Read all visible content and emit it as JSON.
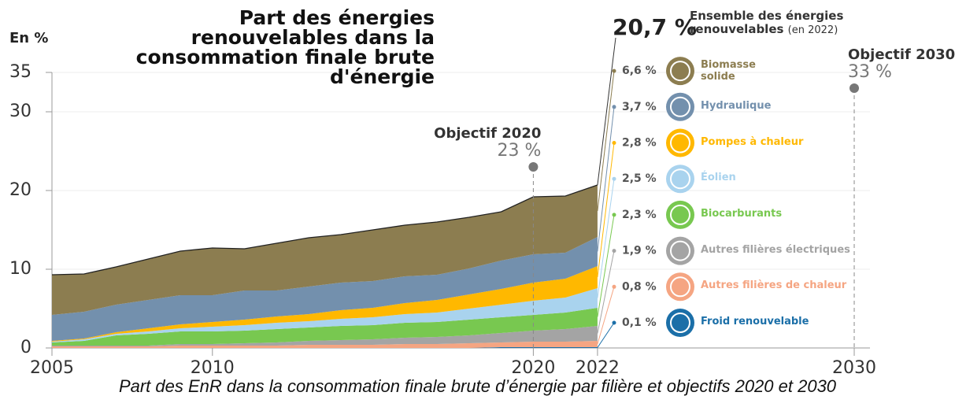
{
  "chart_data": {
    "type": "stacked_area",
    "title": "Part des énergies renouvelables dans la consommation finale brute d'énergie",
    "y_label": "En %",
    "caption": "Part des EnR dans la consommation finale brute d’énergie par filière et objectifs 2020 et 2030",
    "x": [
      2005,
      2006,
      2007,
      2008,
      2009,
      2010,
      2011,
      2012,
      2013,
      2014,
      2015,
      2016,
      2017,
      2018,
      2019,
      2020,
      2021,
      2022
    ],
    "xlim": [
      2005,
      2030
    ],
    "xticks": [
      2005,
      2010,
      2020,
      2022,
      2030
    ],
    "ylim": [
      0,
      35
    ],
    "yticks": [
      0,
      10,
      20,
      30,
      35
    ],
    "grid": true,
    "series": [
      {
        "name": "Froid renouvelable",
        "color": "#1b6fa8",
        "values": [
          0,
          0,
          0,
          0,
          0,
          0,
          0,
          0,
          0,
          0,
          0,
          0,
          0,
          0,
          0.1,
          0.1,
          0.1,
          0.1
        ],
        "value_label": "0,1 %"
      },
      {
        "name": "Autres filières de chaleur",
        "color": "#f5a582",
        "values": [
          0.2,
          0.2,
          0.2,
          0.2,
          0.3,
          0.3,
          0.3,
          0.3,
          0.4,
          0.4,
          0.4,
          0.5,
          0.5,
          0.6,
          0.6,
          0.7,
          0.7,
          0.8
        ],
        "value_label": "0,8 %"
      },
      {
        "name": "Autres filières électriques",
        "color": "#a4a4a4",
        "values": [
          0.1,
          0.1,
          0.1,
          0.1,
          0.2,
          0.2,
          0.3,
          0.4,
          0.5,
          0.6,
          0.7,
          0.8,
          0.9,
          1.0,
          1.2,
          1.4,
          1.6,
          1.9
        ],
        "value_label": "1,9 %"
      },
      {
        "name": "Biocarburants",
        "color": "#78c850",
        "values": [
          0.4,
          0.6,
          1.3,
          1.5,
          1.6,
          1.6,
          1.6,
          1.7,
          1.7,
          1.8,
          1.8,
          1.9,
          1.9,
          2.0,
          2.0,
          2.0,
          2.1,
          2.3
        ],
        "value_label": "2,3 %"
      },
      {
        "name": "Éolien",
        "color": "#a9d3ee",
        "values": [
          0.1,
          0.2,
          0.2,
          0.3,
          0.4,
          0.6,
          0.7,
          0.8,
          0.8,
          0.9,
          1.0,
          1.1,
          1.2,
          1.4,
          1.6,
          1.8,
          1.9,
          2.5
        ],
        "value_label": "2,5 %"
      },
      {
        "name": "Pompes à chaleur",
        "color": "#ffb800",
        "values": [
          0.1,
          0.1,
          0.2,
          0.4,
          0.5,
          0.6,
          0.7,
          0.8,
          0.9,
          1.1,
          1.2,
          1.4,
          1.6,
          1.8,
          2.0,
          2.3,
          2.4,
          2.8
        ],
        "value_label": "2,8 %"
      },
      {
        "name": "Hydraulique",
        "color": "#7390ad",
        "values": [
          3.3,
          3.4,
          3.5,
          3.6,
          3.7,
          3.4,
          3.7,
          3.3,
          3.5,
          3.5,
          3.4,
          3.4,
          3.2,
          3.3,
          3.6,
          3.6,
          3.3,
          3.7
        ],
        "value_label": "3,7 %"
      },
      {
        "name": "Biomasse solide",
        "color": "#8c7d50",
        "values": [
          5.1,
          4.8,
          4.8,
          5.2,
          5.6,
          6.0,
          5.3,
          6.0,
          6.2,
          6.1,
          6.5,
          6.5,
          6.7,
          6.5,
          6.2,
          7.3,
          7.2,
          6.6
        ],
        "value_label": "6,6 %"
      }
    ],
    "total": {
      "value": 20.7,
      "label": "20,7 %",
      "text": "Ensemble des énergies renouvelables",
      "note": "(en 2022)"
    },
    "targets": [
      {
        "label": "Objectif 2020",
        "x": 2020,
        "value": 23,
        "value_label": "23 %"
      },
      {
        "label": "Objectif 2030",
        "x": 2030,
        "value": 33,
        "value_label": "33 %"
      }
    ]
  }
}
